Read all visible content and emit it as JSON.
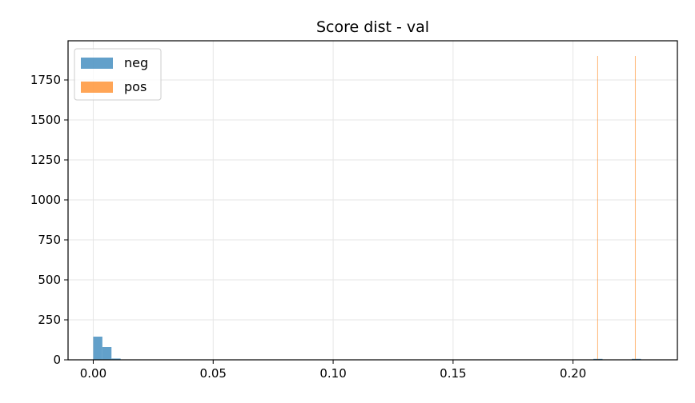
{
  "chart_data": {
    "type": "bar",
    "title": "Score dist - val",
    "xlabel": "",
    "ylabel": "",
    "xlim": [
      -0.0105,
      0.2435
    ],
    "ylim": [
      0,
      1995
    ],
    "grid": true,
    "legend_position": "top-left",
    "x_ticks": [
      {
        "value": 0.0,
        "label": "0.00"
      },
      {
        "value": 0.05,
        "label": "0.05"
      },
      {
        "value": 0.1,
        "label": "0.10"
      },
      {
        "value": 0.15,
        "label": "0.15"
      },
      {
        "value": 0.2,
        "label": "0.20"
      }
    ],
    "y_ticks": [
      {
        "value": 0,
        "label": "0"
      },
      {
        "value": 250,
        "label": "250"
      },
      {
        "value": 500,
        "label": "500"
      },
      {
        "value": 750,
        "label": "750"
      },
      {
        "value": 1000,
        "label": "1000"
      },
      {
        "value": 1250,
        "label": "1250"
      },
      {
        "value": 1500,
        "label": "1500"
      },
      {
        "value": 1750,
        "label": "1750"
      }
    ],
    "series": [
      {
        "name": "neg",
        "color": "#1f77b4",
        "opacity": 0.7,
        "bins": [
          {
            "x0": 0.0,
            "x1": 0.0038,
            "count": 145
          },
          {
            "x0": 0.0038,
            "x1": 0.0076,
            "count": 80
          },
          {
            "x0": 0.0076,
            "x1": 0.0114,
            "count": 8
          },
          {
            "x0": 0.2085,
            "x1": 0.2123,
            "count": 6
          },
          {
            "x0": 0.2245,
            "x1": 0.2283,
            "count": 6
          }
        ]
      },
      {
        "name": "pos",
        "color": "#ff7f0e",
        "opacity": 0.7,
        "bins": [
          {
            "x0": 0.2101,
            "x1": 0.21035,
            "count": 1900
          },
          {
            "x0": 0.2258,
            "x1": 0.22605,
            "count": 1900
          }
        ]
      }
    ]
  }
}
